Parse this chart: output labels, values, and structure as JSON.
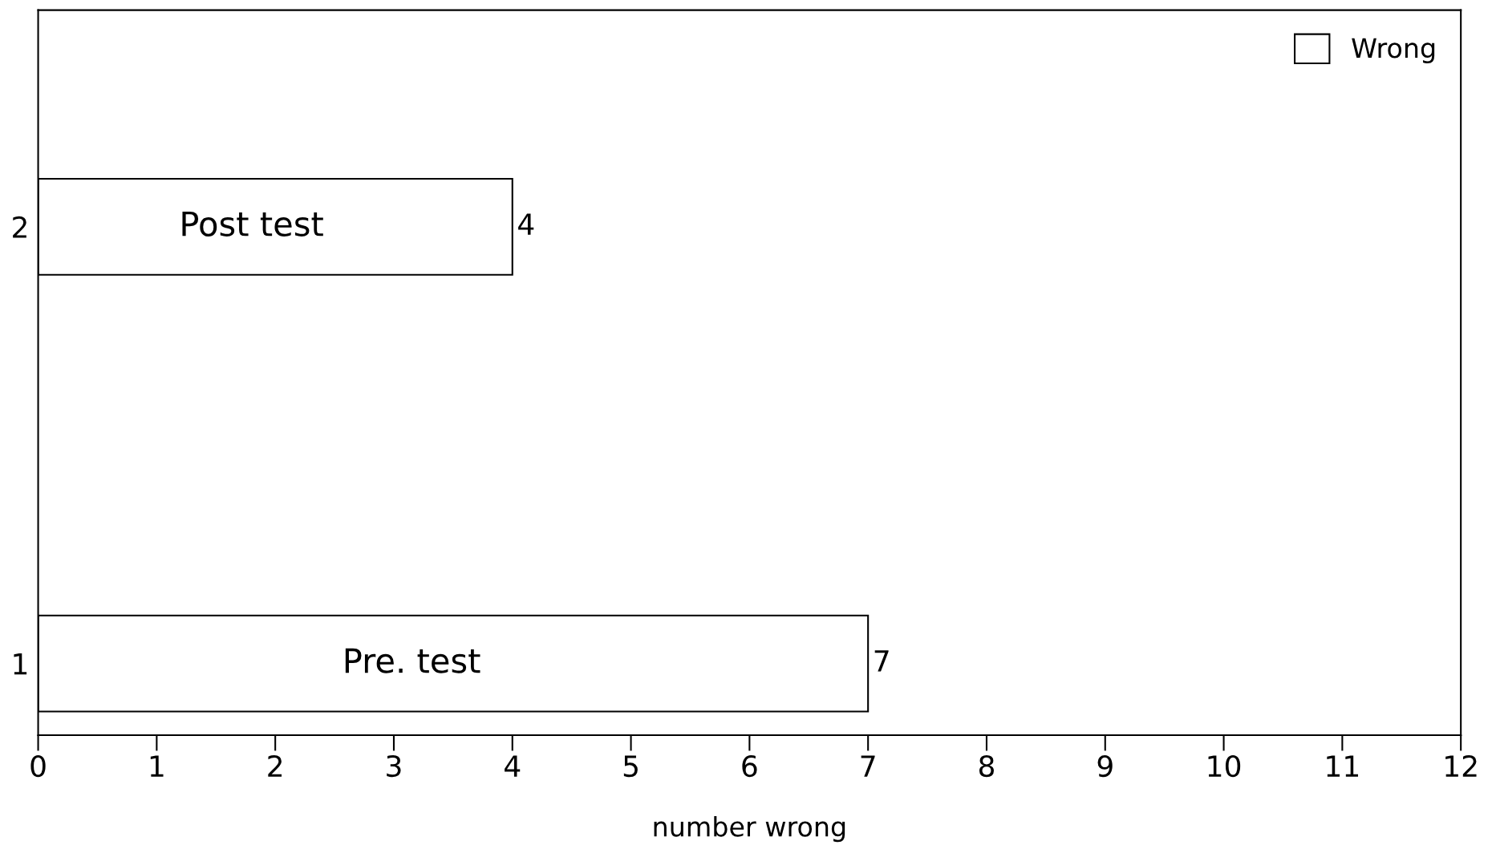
{
  "chart_data": {
    "type": "bar",
    "orientation": "horizontal",
    "xlabel": "number wrong",
    "categories": [
      "2",
      "1"
    ],
    "series": [
      {
        "name": "Wrong",
        "color": "#ffffff",
        "values": [
          4,
          7
        ]
      }
    ],
    "data_labels": true,
    "xlim": [
      0,
      12
    ],
    "xticks": [
      0,
      1,
      2,
      3,
      4,
      5,
      6,
      7,
      8,
      9,
      10,
      11,
      12
    ],
    "grid": false,
    "legend": "top right",
    "annotations": [
      "Post test",
      "Pre. test"
    ]
  }
}
